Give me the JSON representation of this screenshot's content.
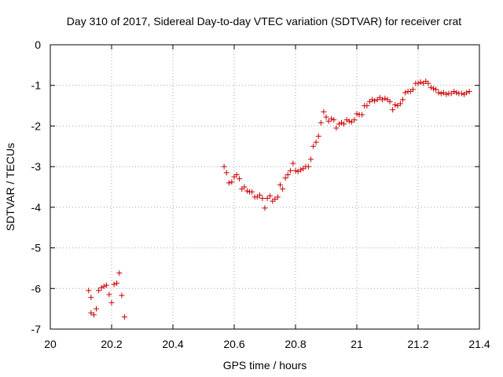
{
  "chart_data": {
    "type": "scatter",
    "title": "Day 310 of 2017, Sidereal Day-to-day VTEC variation (SDTVAR) for receiver crat",
    "xlabel": "GPS time / hours",
    "ylabel": "SDTVAR / TECUs",
    "xlim": [
      20,
      21.4
    ],
    "ylim": [
      -7,
      0
    ],
    "xticks": [
      20,
      20.2,
      20.4,
      20.6,
      20.8,
      21,
      21.2,
      21.4
    ],
    "xtick_labels": [
      "20",
      "20.2",
      "20.4",
      "20.6",
      "20.8",
      "21",
      "21.2",
      "21.4"
    ],
    "yticks": [
      0,
      -1,
      -2,
      -3,
      -4,
      -5,
      -6,
      -7
    ],
    "ytick_labels": [
      "0",
      "-1",
      "-2",
      "-3",
      "-4",
      "-5",
      "-6",
      "-7"
    ],
    "grid": true,
    "marker": "+",
    "color": "#cc0000",
    "x": [
      20.125,
      20.133,
      20.142,
      20.15,
      20.158,
      20.167,
      20.175,
      20.183,
      20.192,
      20.2,
      20.208,
      20.217,
      20.225,
      20.233,
      20.242,
      20.133,
      20.567,
      20.575,
      20.583,
      20.592,
      20.6,
      20.608,
      20.617,
      20.625,
      20.633,
      20.642,
      20.65,
      20.658,
      20.667,
      20.675,
      20.683,
      20.692,
      20.7,
      20.708,
      20.717,
      20.725,
      20.733,
      20.742,
      20.75,
      20.758,
      20.767,
      20.775,
      20.783,
      20.792,
      20.8,
      20.808,
      20.817,
      20.825,
      20.833,
      20.842,
      20.85,
      20.858,
      20.867,
      20.875,
      20.883,
      20.892,
      20.9,
      20.908,
      20.917,
      20.925,
      20.933,
      20.942,
      20.95,
      20.958,
      20.967,
      20.975,
      20.983,
      20.992,
      21,
      21.008,
      21.017,
      21.025,
      21.033,
      21.042,
      21.05,
      21.058,
      21.067,
      21.075,
      21.083,
      21.092,
      21.1,
      21.108,
      21.117,
      21.125,
      21.133,
      21.142,
      21.15,
      21.158,
      21.167,
      21.175,
      21.183,
      21.192,
      21.2,
      21.208,
      21.217,
      21.225,
      21.233,
      21.242,
      21.25,
      21.258,
      21.267,
      21.275,
      21.283,
      21.292,
      21.3,
      21.308,
      21.317,
      21.325,
      21.333,
      21.342,
      21.35,
      21.358,
      21.367
    ],
    "values": [
      -6.05,
      -6.22,
      -6.65,
      -6.5,
      -6.05,
      -5.98,
      -5.95,
      -5.92,
      -6.15,
      -6.35,
      -5.9,
      -5.87,
      -5.62,
      -6.17,
      -6.7,
      -6.6,
      -3.0,
      -3.15,
      -3.4,
      -3.38,
      -3.25,
      -3.2,
      -3.3,
      -3.55,
      -3.5,
      -3.6,
      -3.62,
      -3.62,
      -3.75,
      -3.75,
      -3.7,
      -3.78,
      -4.02,
      -3.78,
      -3.72,
      -3.85,
      -3.8,
      -3.75,
      -3.45,
      -3.55,
      -3.28,
      -3.2,
      -3.1,
      -2.92,
      -3.1,
      -3.12,
      -3.08,
      -3.05,
      -3.0,
      -3.0,
      -2.82,
      -2.5,
      -2.4,
      -2.25,
      -1.92,
      -1.65,
      -1.78,
      -1.88,
      -1.82,
      -1.85,
      -2.05,
      -1.95,
      -1.92,
      -1.95,
      -1.85,
      -1.88,
      -1.9,
      -1.85,
      -1.7,
      -1.72,
      -1.72,
      -1.5,
      -1.5,
      -1.4,
      -1.35,
      -1.38,
      -1.35,
      -1.3,
      -1.35,
      -1.32,
      -1.35,
      -1.4,
      -1.6,
      -1.48,
      -1.5,
      -1.45,
      -1.35,
      -1.18,
      -1.15,
      -1.15,
      -1.1,
      -0.95,
      -0.95,
      -0.92,
      -0.95,
      -0.9,
      -0.95,
      -1.05,
      -1.08,
      -1.1,
      -1.18,
      -1.2,
      -1.18,
      -1.22,
      -1.2,
      -1.2,
      -1.15,
      -1.18,
      -1.2,
      -1.2,
      -1.22,
      -1.18,
      -1.15
    ]
  }
}
